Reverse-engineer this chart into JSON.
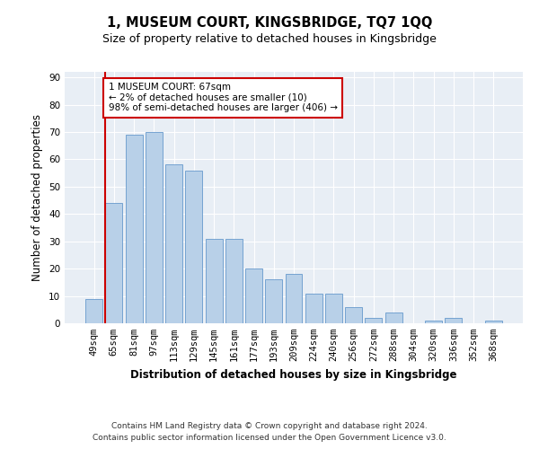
{
  "title": "1, MUSEUM COURT, KINGSBRIDGE, TQ7 1QQ",
  "subtitle": "Size of property relative to detached houses in Kingsbridge",
  "xlabel": "Distribution of detached houses by size in Kingsbridge",
  "ylabel": "Number of detached properties",
  "categories": [
    "49sqm",
    "65sqm",
    "81sqm",
    "97sqm",
    "113sqm",
    "129sqm",
    "145sqm",
    "161sqm",
    "177sqm",
    "193sqm",
    "209sqm",
    "224sqm",
    "240sqm",
    "256sqm",
    "272sqm",
    "288sqm",
    "304sqm",
    "320sqm",
    "336sqm",
    "352sqm",
    "368sqm"
  ],
  "values": [
    9,
    44,
    69,
    70,
    58,
    56,
    31,
    31,
    20,
    16,
    18,
    11,
    11,
    6,
    2,
    4,
    0,
    1,
    2,
    0,
    1
  ],
  "bar_color": "#b8d0e8",
  "bar_edge_color": "#6699cc",
  "annotation_text_line1": "1 MUSEUM COURT: 67sqm",
  "annotation_text_line2": "← 2% of detached houses are smaller (10)",
  "annotation_text_line3": "98% of semi-detached houses are larger (406) →",
  "annotation_box_color": "white",
  "annotation_box_edge": "#cc0000",
  "vline_color": "#cc0000",
  "ylim": [
    0,
    92
  ],
  "yticks": [
    0,
    10,
    20,
    30,
    40,
    50,
    60,
    70,
    80,
    90
  ],
  "footer_line1": "Contains HM Land Registry data © Crown copyright and database right 2024.",
  "footer_line2": "Contains public sector information licensed under the Open Government Licence v3.0.",
  "bg_color": "#ffffff",
  "plot_bg_color": "#e8eef5",
  "grid_color": "#ffffff",
  "title_fontsize": 10.5,
  "subtitle_fontsize": 9,
  "axis_label_fontsize": 8.5,
  "tick_fontsize": 7.5,
  "annotation_fontsize": 7.5,
  "footer_fontsize": 6.5
}
